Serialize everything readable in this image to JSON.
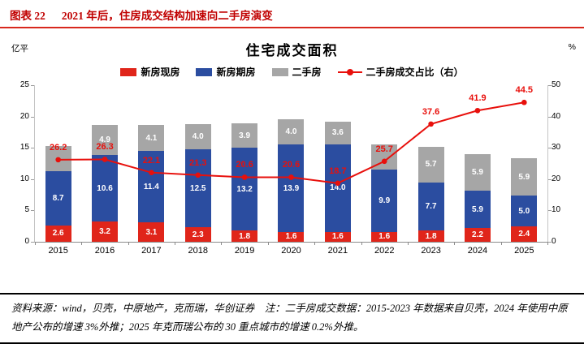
{
  "header": {
    "label": "图表 22",
    "title": "2021 年后，住房成交结构加速向二手房演变"
  },
  "chart": {
    "title": "住宅成交面积",
    "unit_left": "亿平",
    "unit_right": "%",
    "legend": [
      {
        "label": "新房现房",
        "type": "box",
        "color": "#e0251a"
      },
      {
        "label": "新房期房",
        "type": "box",
        "color": "#2b4da0"
      },
      {
        "label": "二手房",
        "type": "box",
        "color": "#a6a6a6"
      },
      {
        "label": "二手房成交占比（右）",
        "type": "line",
        "color": "#e8100c"
      }
    ]
  },
  "chart_data": {
    "type": "bar",
    "subtype": "stacked-bar-with-line",
    "title": "住宅成交面积",
    "ylabel_left": "亿平",
    "ylabel_right": "%",
    "grid": false,
    "legend_position": "top",
    "categories": [
      "2015",
      "2016",
      "2017",
      "2018",
      "2019",
      "2020",
      "2021",
      "2022",
      "2023",
      "2024",
      "2025"
    ],
    "series": [
      {
        "name": "新房现房",
        "color": "#e0251a",
        "values": [
          2.6,
          3.2,
          3.1,
          2.3,
          1.8,
          1.6,
          1.6,
          1.6,
          1.8,
          2.2,
          2.4
        ]
      },
      {
        "name": "新房期房",
        "color": "#2b4da0",
        "values": [
          8.7,
          10.6,
          11.4,
          12.5,
          13.2,
          13.9,
          14.0,
          9.9,
          7.7,
          5.9,
          5.0
        ]
      },
      {
        "name": "二手房",
        "color": "#a6a6a6",
        "values": [
          4.0,
          4.9,
          4.1,
          4.0,
          3.9,
          4.0,
          3.6,
          4.0,
          5.7,
          5.9,
          5.9
        ],
        "labels": [
          null,
          "4.9",
          "4.1",
          "4.0",
          "3.9",
          "4.0",
          "3.6",
          null,
          "5.7",
          "5.9",
          "5.9"
        ]
      }
    ],
    "line_series": {
      "name": "二手房成交占比（右）",
      "color": "#e8100c",
      "axis": "right",
      "values": [
        26.2,
        26.3,
        22.1,
        21.3,
        20.6,
        20.6,
        18.7,
        25.7,
        37.6,
        41.9,
        44.5
      ]
    },
    "ylim_left": [
      0,
      25
    ],
    "yticks_left": [
      0,
      5,
      10,
      15,
      20,
      25
    ],
    "ylim_right": [
      0,
      50
    ],
    "yticks_right": [
      0,
      10,
      20,
      30,
      40,
      50
    ]
  },
  "footer": {
    "text": "资料来源：wind，贝壳，中原地产，克而瑞，华创证券　注：二手房成交数据：2015-2023 年数据来自贝壳，2024 年使用中原地产公布的增速 3%外推；2025 年克而瑞公布的 30 重点城市的增速 0.2%外推。"
  }
}
